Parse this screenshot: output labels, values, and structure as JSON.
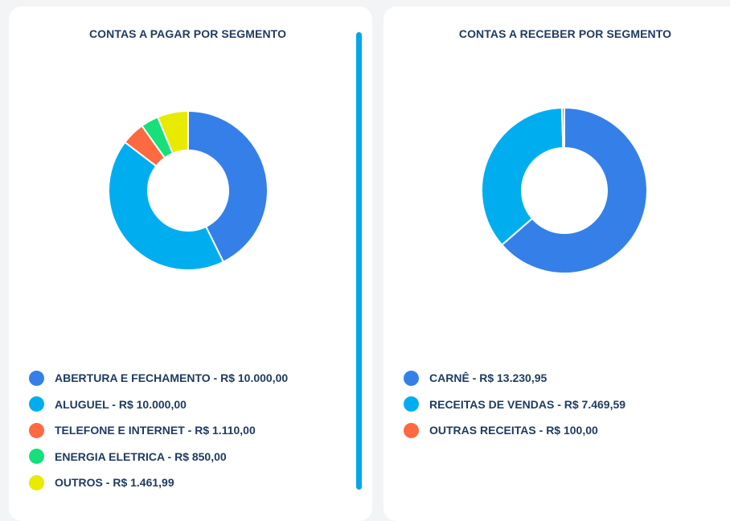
{
  "chart_data": [
    {
      "type": "pie",
      "title": "CONTAS A PAGAR POR SEGMENTO",
      "categories": [
        "ABERTURA E FECHAMENTO",
        "ALUGUEL",
        "TELEFONE E INTERNET",
        "ENERGIA ELETRICA",
        "OUTROS"
      ],
      "values": [
        10000.0,
        10000.0,
        1110.0,
        850.0,
        1461.99
      ],
      "labels": [
        "ABERTURA E FECHAMENTO - R$ 10.000,00",
        "ALUGUEL - R$ 10.000,00",
        "TELEFONE E INTERNET - R$ 1.110,00",
        "ENERGIA ELETRICA - R$ 850,00",
        "OUTROS - R$ 1.461,99"
      ],
      "colors": [
        "#3480e8",
        "#00aeef",
        "#fd6a41",
        "#17e07a",
        "#e8ea00"
      ],
      "donut": true,
      "legend": "bottom"
    },
    {
      "type": "pie",
      "title": "CONTAS A RECEBER POR SEGMENTO",
      "categories": [
        "CARNÊ",
        "RECEITAS DE VENDAS",
        "OUTRAS RECEITAS"
      ],
      "values": [
        13230.95,
        7469.59,
        100.0
      ],
      "labels": [
        "CARNÊ - R$ 13.230,95",
        "RECEITAS DE VENDAS - R$ 7.469,59",
        "OUTRAS RECEITAS - R$ 100,00"
      ],
      "colors": [
        "#3480e8",
        "#00aeef",
        "#fd6a41"
      ],
      "donut": true,
      "legend": "bottom"
    }
  ]
}
